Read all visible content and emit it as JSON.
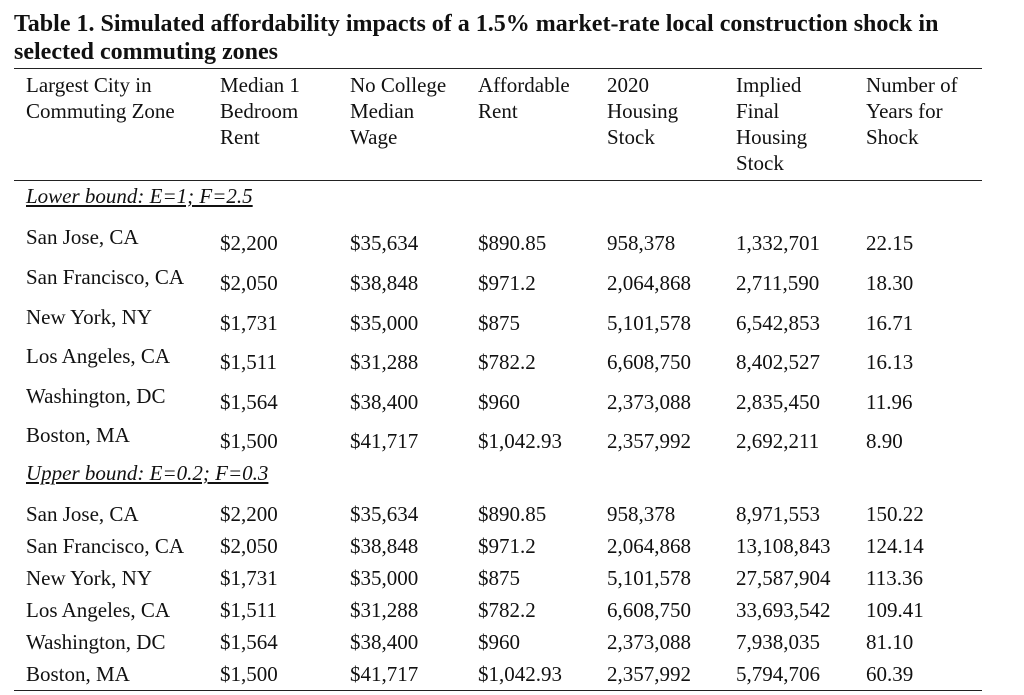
{
  "title": "Table 1. Simulated affordability impacts of a 1.5% market-rate local construction shock in selected commuting zones",
  "table": {
    "headers": [
      [
        "Largest City in",
        "Commuting Zone"
      ],
      [
        "Median 1",
        "Bedroom",
        "Rent"
      ],
      [
        "No College",
        "Median",
        "Wage"
      ],
      [
        "Affordable",
        "Rent"
      ],
      [
        "2020",
        "Housing",
        "Stock"
      ],
      [
        "Implied",
        "Final",
        "Housing",
        "Stock"
      ],
      [
        "Number of",
        "Years for",
        "Shock"
      ]
    ],
    "sections": [
      {
        "label": "Lower bound: E=1; F=2.5",
        "rows": [
          [
            "San Jose, CA",
            "$2,200",
            "$35,634",
            "$890.85",
            "958,378",
            "1,332,701",
            "22.15"
          ],
          [
            "San Francisco, CA",
            "$2,050",
            "$38,848",
            "$971.2",
            "2,064,868",
            "2,711,590",
            "18.30"
          ],
          [
            "New York, NY",
            "$1,731",
            "$35,000",
            "$875",
            "5,101,578",
            "6,542,853",
            "16.71"
          ],
          [
            "Los Angeles, CA",
            "$1,511",
            "$31,288",
            "$782.2",
            "6,608,750",
            "8,402,527",
            "16.13"
          ],
          [
            "Washington, DC",
            "$1,564",
            "$38,400",
            "$960",
            "2,373,088",
            "2,835,450",
            "11.96"
          ],
          [
            "Boston, MA",
            "$1,500",
            "$41,717",
            "$1,042.93",
            "2,357,992",
            "2,692,211",
            "8.90"
          ]
        ]
      },
      {
        "label": "Upper bound: E=0.2; F=0.3",
        "rows": [
          [
            "San Jose, CA",
            "$2,200",
            "$35,634",
            "$890.85",
            "958,378",
            "8,971,553",
            "150.22"
          ],
          [
            "San Francisco, CA",
            "$2,050",
            "$38,848",
            "$971.2",
            "2,064,868",
            "13,108,843",
            "124.14"
          ],
          [
            "New York, NY",
            "$1,731",
            "$35,000",
            "$875",
            "5,101,578",
            "27,587,904",
            "113.36"
          ],
          [
            "Los Angeles, CA",
            "$1,511",
            "$31,288",
            "$782.2",
            "6,608,750",
            "33,693,542",
            "109.41"
          ],
          [
            "Washington, DC",
            "$1,564",
            "$38,400",
            "$960",
            "2,373,088",
            "7,938,035",
            "81.10"
          ],
          [
            "Boston, MA",
            "$1,500",
            "$41,717",
            "$1,042.93",
            "2,357,992",
            "5,794,706",
            "60.39"
          ]
        ]
      }
    ]
  }
}
